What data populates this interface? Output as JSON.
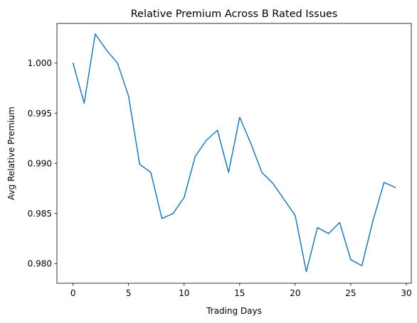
{
  "chart_data": {
    "type": "line",
    "title": "Relative Premium Across B Rated Issues",
    "xlabel": "Trading Days",
    "ylabel": "Avg Relative Premium",
    "xlim": [
      -1.45,
      30.45
    ],
    "ylim": [
      0.97805,
      1.00395
    ],
    "xticks": [
      0,
      5,
      10,
      15,
      20,
      25,
      30
    ],
    "xtick_labels": [
      "0",
      "5",
      "10",
      "15",
      "20",
      "25",
      "30"
    ],
    "yticks": [
      0.98,
      0.985,
      0.99,
      0.995,
      1.0
    ],
    "ytick_labels": [
      "0.980",
      "0.985",
      "0.990",
      "0.995",
      "1.000"
    ],
    "grid": false,
    "series": [
      {
        "color": "#1f77b4",
        "x": [
          0,
          1,
          2,
          3,
          4,
          5,
          6,
          7,
          8,
          9,
          10,
          11,
          12,
          13,
          14,
          15,
          16,
          17,
          18,
          19,
          20,
          21,
          22,
          23,
          24,
          25,
          26,
          27,
          28,
          29
        ],
        "y": [
          1.0,
          0.996,
          1.0029,
          1.0013,
          1.0,
          0.9967,
          0.9899,
          0.9891,
          0.9845,
          0.985,
          0.9866,
          0.9907,
          0.9923,
          0.9933,
          0.9891,
          0.9946,
          0.992,
          0.9891,
          0.988,
          0.9864,
          0.9848,
          0.9792,
          0.9836,
          0.983,
          0.9841,
          0.9804,
          0.9798,
          0.9843,
          0.9881,
          0.9876
        ]
      }
    ]
  }
}
